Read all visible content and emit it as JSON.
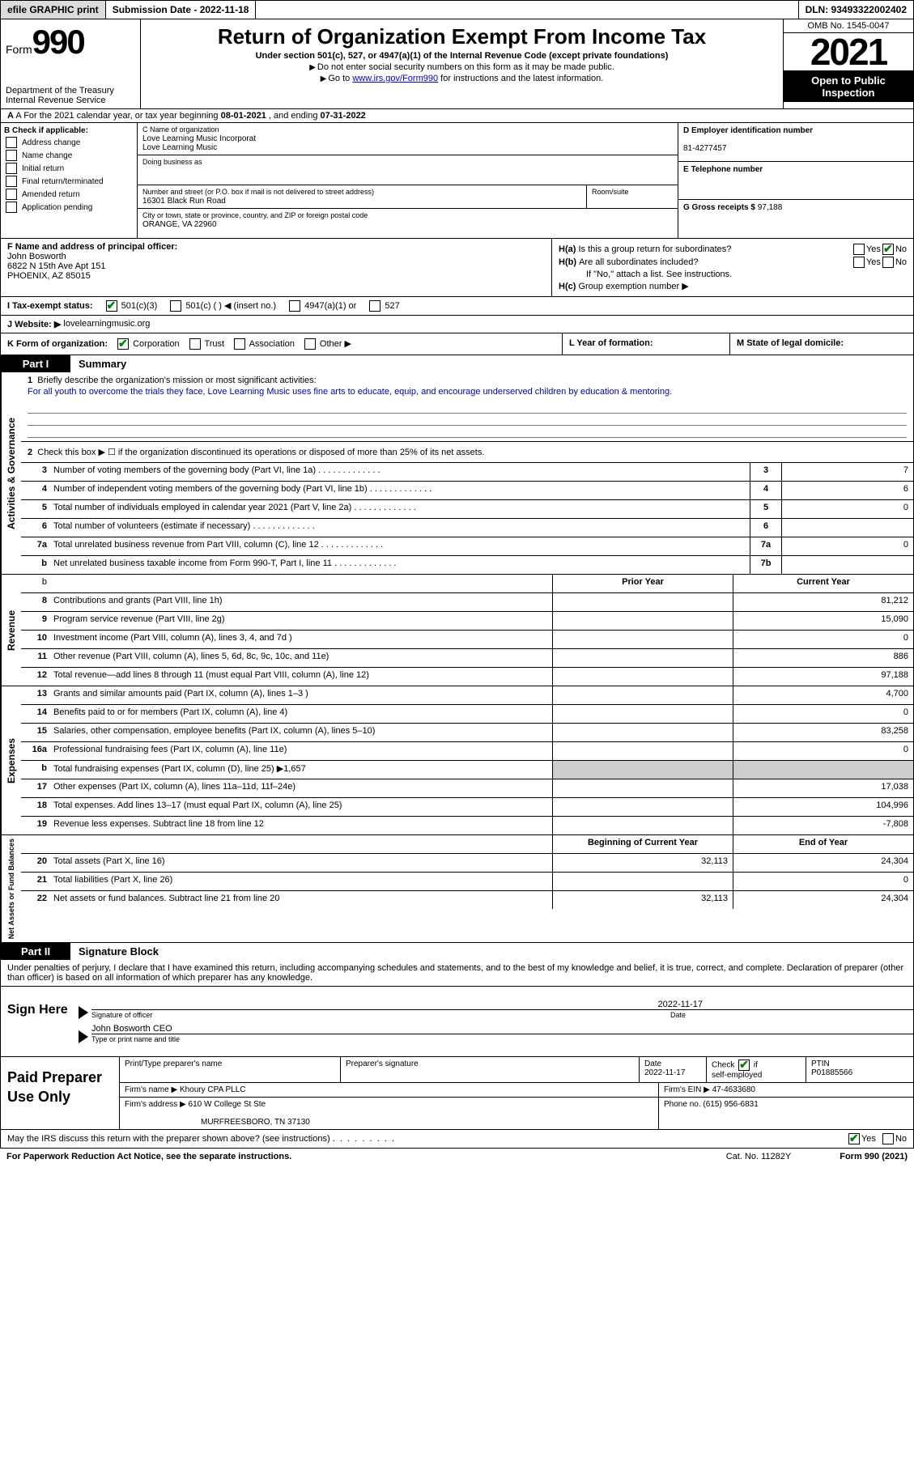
{
  "topbar": {
    "efile_btn": "efile GRAPHIC print",
    "submission": "Submission Date - 2022-11-18",
    "dln": "DLN: 93493322002402"
  },
  "header": {
    "form_label": "Form",
    "form_number": "990",
    "dept": "Department of the Treasury\nInternal Revenue Service",
    "title": "Return of Organization Exempt From Income Tax",
    "subtitle": "Under section 501(c), 527, or 4947(a)(1) of the Internal Revenue Code (except private foundations)",
    "note1": "Do not enter social security numbers on this form as it may be made public.",
    "note2_prefix": "Go to ",
    "note2_link": "www.irs.gov/Form990",
    "note2_suffix": " for instructions and the latest information.",
    "omb": "OMB No. 1545-0047",
    "year": "2021",
    "open": "Open to Public Inspection"
  },
  "line_a": {
    "prefix": "A For the 2021 calendar year, or tax year beginning ",
    "begin": "08-01-2021",
    "mid": " , and ending ",
    "end": "07-31-2022"
  },
  "section_b": {
    "heading": "B Check if applicable:",
    "items": [
      "Address change",
      "Name change",
      "Initial return",
      "Final return/terminated",
      "Amended return",
      "Application pending"
    ]
  },
  "section_c": {
    "label": "C Name of organization",
    "name1": "Love Learning Music Incorporat",
    "name2": "Love Learning Music",
    "dba_label": "Doing business as",
    "addr_label": "Number and street (or P.O. box if mail is not delivered to street address)",
    "addr": "16301 Black Run Road",
    "room_label": "Room/suite",
    "city_label": "City or town, state or province, country, and ZIP or foreign postal code",
    "city": "ORANGE, VA  22960"
  },
  "section_d": {
    "label": "D Employer identification number",
    "ein": "81-4277457",
    "e_label": "E Telephone number",
    "g_label": "G Gross receipts $",
    "g_val": "97,188"
  },
  "section_f": {
    "label": "F Name and address of principal officer:",
    "name": "John Bosworth",
    "addr1": "6822 N 15th Ave Apt 151",
    "addr2": "PHOENIX, AZ  85015"
  },
  "section_h": {
    "ha": "Is this a group return for subordinates?",
    "hb": "Are all subordinates included?",
    "note": "If \"No,\" attach a list. See instructions.",
    "hc": "Group exemption number ▶"
  },
  "section_i": {
    "label": "I    Tax-exempt status:",
    "opt1": "501(c)(3)",
    "opt2": "501(c) (  ) ◀ (insert no.)",
    "opt3": "4947(a)(1) or",
    "opt4": "527"
  },
  "section_j": {
    "label": "J   Website: ▶",
    "url": "lovelearningmusic.org"
  },
  "section_k": {
    "label": "K Form of organization:",
    "opts": [
      "Corporation",
      "Trust",
      "Association",
      "Other ▶"
    ],
    "l_label": "L Year of formation:",
    "m_label": "M State of legal domicile:"
  },
  "part1": {
    "label": "Part I",
    "title": "Summary",
    "vtab1": "Activities & Governance",
    "vtab2": "Revenue",
    "vtab3": "Expenses",
    "vtab4": "Net Assets or Fund Balances",
    "line1_label": "Briefly describe the organization's mission or most significant activities:",
    "mission": "For all youth to overcome the trials they face, Love Learning Music uses fine arts to educate, equip, and encourage underserved children by education & mentoring.",
    "line2": "Check this box ▶ ☐ if the organization discontinued its operations or disposed of more than 25% of its net assets.",
    "lines_gov": [
      {
        "n": "3",
        "d": "Number of voting members of the governing body (Part VI, line 1a)",
        "v": "7"
      },
      {
        "n": "4",
        "d": "Number of independent voting members of the governing body (Part VI, line 1b)",
        "v": "6"
      },
      {
        "n": "5",
        "d": "Total number of individuals employed in calendar year 2021 (Part V, line 2a)",
        "v": "0"
      },
      {
        "n": "6",
        "d": "Total number of volunteers (estimate if necessary)",
        "v": ""
      },
      {
        "n": "7a",
        "d": "Total unrelated business revenue from Part VIII, column (C), line 12",
        "v": "0"
      },
      {
        "n": "b",
        "d": "Net unrelated business taxable income from Form 990-T, Part I, line 11",
        "bn": "7b",
        "v": ""
      }
    ],
    "prior_label": "Prior Year",
    "current_label": "Current Year",
    "lines_rev": [
      {
        "n": "8",
        "d": "Contributions and grants (Part VIII, line 1h)",
        "p": "",
        "c": "81,212"
      },
      {
        "n": "9",
        "d": "Program service revenue (Part VIII, line 2g)",
        "p": "",
        "c": "15,090"
      },
      {
        "n": "10",
        "d": "Investment income (Part VIII, column (A), lines 3, 4, and 7d )",
        "p": "",
        "c": "0"
      },
      {
        "n": "11",
        "d": "Other revenue (Part VIII, column (A), lines 5, 6d, 8c, 9c, 10c, and 11e)",
        "p": "",
        "c": "886"
      },
      {
        "n": "12",
        "d": "Total revenue—add lines 8 through 11 (must equal Part VIII, column (A), line 12)",
        "p": "",
        "c": "97,188"
      }
    ],
    "lines_exp": [
      {
        "n": "13",
        "d": "Grants and similar amounts paid (Part IX, column (A), lines 1–3 )",
        "p": "",
        "c": "4,700"
      },
      {
        "n": "14",
        "d": "Benefits paid to or for members (Part IX, column (A), line 4)",
        "p": "",
        "c": "0"
      },
      {
        "n": "15",
        "d": "Salaries, other compensation, employee benefits (Part IX, column (A), lines 5–10)",
        "p": "",
        "c": "83,258"
      },
      {
        "n": "16a",
        "d": "Professional fundraising fees (Part IX, column (A), line 11e)",
        "p": "",
        "c": "0"
      },
      {
        "n": "b",
        "d": "Total fundraising expenses (Part IX, column (D), line 25) ▶1,657",
        "shaded": true
      },
      {
        "n": "17",
        "d": "Other expenses (Part IX, column (A), lines 11a–11d, 11f–24e)",
        "p": "",
        "c": "17,038"
      },
      {
        "n": "18",
        "d": "Total expenses. Add lines 13–17 (must equal Part IX, column (A), line 25)",
        "p": "",
        "c": "104,996"
      },
      {
        "n": "19",
        "d": "Revenue less expenses. Subtract line 18 from line 12",
        "p": "",
        "c": "-7,808"
      }
    ],
    "begin_label": "Beginning of Current Year",
    "end_label": "End of Year",
    "lines_net": [
      {
        "n": "20",
        "d": "Total assets (Part X, line 16)",
        "p": "32,113",
        "c": "24,304"
      },
      {
        "n": "21",
        "d": "Total liabilities (Part X, line 26)",
        "p": "",
        "c": "0"
      },
      {
        "n": "22",
        "d": "Net assets or fund balances. Subtract line 21 from line 20",
        "p": "32,113",
        "c": "24,304"
      }
    ]
  },
  "part2": {
    "label": "Part II",
    "title": "Signature Block",
    "intro": "Under penalties of perjury, I declare that I have examined this return, including accompanying schedules and statements, and to the best of my knowledge and belief, it is true, correct, and complete. Declaration of preparer (other than officer) is based on all information of which preparer has any knowledge.",
    "sign_here": "Sign Here",
    "sig_date": "2022-11-17",
    "sig_officer_label": "Signature of officer",
    "date_label": "Date",
    "officer_name": "John Bosworth CEO",
    "officer_label": "Type or print name and title",
    "paid_label": "Paid Preparer Use Only",
    "pt_name_label": "Print/Type preparer's name",
    "pt_sig_label": "Preparer's signature",
    "pt_date_label": "Date",
    "pt_date": "2022-11-17",
    "pt_check_label": "Check ☑ if self-employed",
    "ptin_label": "PTIN",
    "ptin": "P01885566",
    "firm_name_label": "Firm's name    ▶",
    "firm_name": "Khoury CPA PLLC",
    "firm_ein_label": "Firm's EIN ▶",
    "firm_ein": "47-4633680",
    "firm_addr_label": "Firm's address ▶",
    "firm_addr": "610 W College St Ste",
    "firm_city": "MURFREESBORO, TN  37130",
    "firm_phone_label": "Phone no.",
    "firm_phone": "(615) 956-6831",
    "discuss": "May the IRS discuss this return with the preparer shown above? (see instructions)"
  },
  "footer": {
    "paperwork": "For Paperwork Reduction Act Notice, see the separate instructions.",
    "cat": "Cat. No. 11282Y",
    "form": "Form 990 (2021)"
  }
}
